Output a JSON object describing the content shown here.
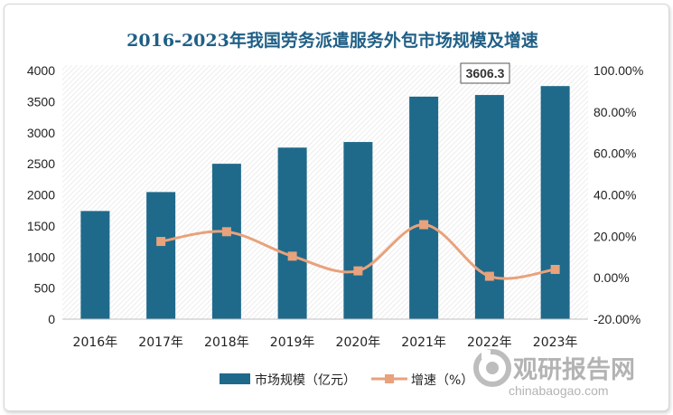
{
  "chart_data": {
    "type": "bar",
    "title": "2016-2023年我国劳务派遣服务外包市场规模及增速",
    "categories": [
      "2016年",
      "2017年",
      "2018年",
      "2019年",
      "2020年",
      "2021年",
      "2022年",
      "2023年"
    ],
    "series": [
      {
        "name": "市场规模（亿元）",
        "type": "bar",
        "axis": "left",
        "color": "#1f6a8b",
        "values": [
          1740,
          2045,
          2500,
          2760,
          2850,
          3580,
          3606.3,
          3750
        ]
      },
      {
        "name": "增速（%）",
        "type": "line",
        "axis": "right",
        "color": "#e8a27c",
        "values": [
          null,
          17.5,
          22.2,
          10.4,
          3.3,
          25.6,
          0.7,
          4.0
        ]
      }
    ],
    "y_left": {
      "ylim": [
        0,
        4000
      ],
      "ticks": [
        "0",
        "500",
        "1000",
        "1500",
        "2000",
        "2500",
        "3000",
        "3500",
        "4000"
      ]
    },
    "y_right": {
      "ylim": [
        -20,
        100
      ],
      "ticks": [
        "-20.00%",
        "0.00%",
        "20.00%",
        "40.00%",
        "60.00%",
        "80.00%",
        "100.00%"
      ]
    },
    "annotation": "3606.3",
    "legend_position": "bottom",
    "grid": false
  },
  "watermark": {
    "cn": "观研报告网",
    "en": "chinabaogao.com"
  }
}
